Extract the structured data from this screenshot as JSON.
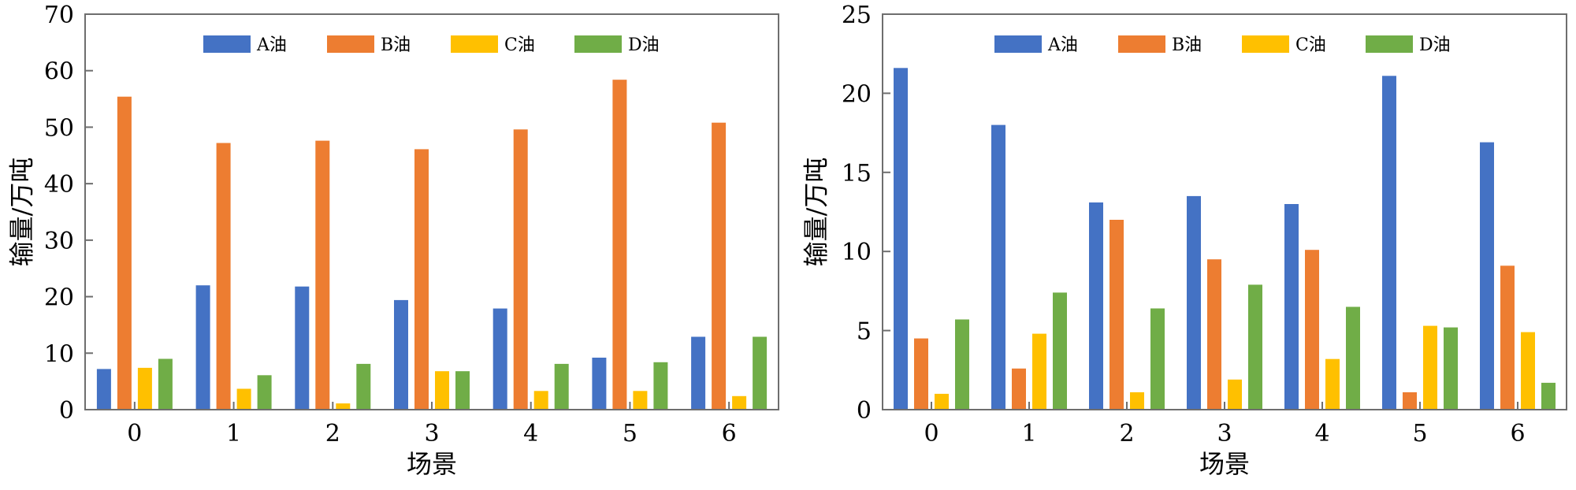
{
  "chart_data": [
    {
      "type": "bar",
      "title": "",
      "xlabel": "场景",
      "ylabel": "输量/万吨",
      "categories": [
        "0",
        "1",
        "2",
        "3",
        "4",
        "5",
        "6"
      ],
      "ylim": [
        0,
        70
      ],
      "yticks": [
        "0",
        "10",
        "20",
        "30",
        "40",
        "50",
        "60",
        "70"
      ],
      "legend_position": "top-center",
      "series": [
        {
          "name": "A油",
          "color": "#4472C4",
          "values": [
            7.2,
            22.0,
            21.8,
            19.4,
            17.9,
            9.2,
            12.9
          ]
        },
        {
          "name": "B油",
          "color": "#ED7D31",
          "values": [
            55.4,
            47.2,
            47.6,
            46.1,
            49.6,
            58.4,
            50.8
          ]
        },
        {
          "name": "C油",
          "color": "#FFC000",
          "values": [
            7.4,
            3.7,
            1.1,
            6.8,
            3.3,
            3.3,
            2.4
          ]
        },
        {
          "name": "D油",
          "color": "#70AD47",
          "values": [
            9.0,
            6.1,
            8.1,
            6.8,
            8.1,
            8.4,
            12.9
          ]
        }
      ]
    },
    {
      "type": "bar",
      "title": "",
      "xlabel": "场景",
      "ylabel": "输量/万吨",
      "categories": [
        "0",
        "1",
        "2",
        "3",
        "4",
        "5",
        "6"
      ],
      "ylim": [
        0,
        25
      ],
      "yticks": [
        "0",
        "5",
        "10",
        "15",
        "20",
        "25"
      ],
      "legend_position": "top-center",
      "series": [
        {
          "name": "A油",
          "color": "#4472C4",
          "values": [
            21.6,
            18.0,
            13.1,
            13.5,
            13.0,
            21.1,
            16.9
          ]
        },
        {
          "name": "B油",
          "color": "#ED7D31",
          "values": [
            4.5,
            2.6,
            12.0,
            9.5,
            10.1,
            1.1,
            9.1
          ]
        },
        {
          "name": "C油",
          "color": "#FFC000",
          "values": [
            1.0,
            4.8,
            1.1,
            1.9,
            3.2,
            5.3,
            4.9
          ]
        },
        {
          "name": "D油",
          "color": "#70AD47",
          "values": [
            5.7,
            7.4,
            6.4,
            7.9,
            6.5,
            5.2,
            1.7
          ]
        }
      ]
    }
  ]
}
